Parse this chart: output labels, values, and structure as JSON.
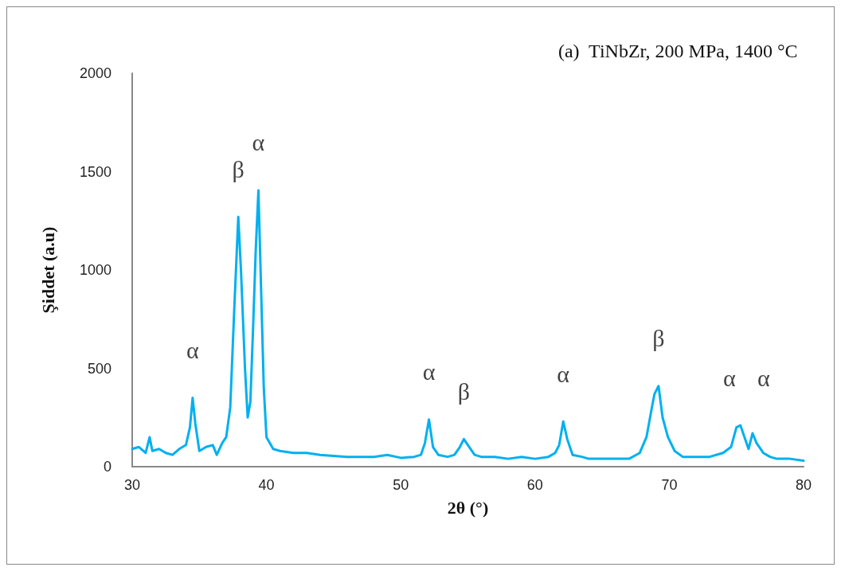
{
  "chart_data": {
    "type": "line",
    "title": "(a)  TiNbZr, 200 MPa, 1400 °C",
    "xlabel": "2θ (°)",
    "ylabel": "Şiddet (a.u)",
    "x": [
      30,
      30.5,
      31,
      31.3,
      31.5,
      32,
      32.5,
      33,
      33.5,
      34,
      34.3,
      34.5,
      34.7,
      35,
      35.5,
      36,
      36.3,
      36.7,
      37,
      37.3,
      37.6,
      37.9,
      38.1,
      38.4,
      38.6,
      38.8,
      39,
      39.2,
      39.4,
      39.6,
      39.8,
      40,
      40.5,
      41,
      42,
      43,
      44,
      45,
      46,
      47,
      48,
      49,
      50,
      51,
      51.5,
      51.8,
      52.1,
      52.4,
      52.8,
      53.5,
      54,
      54.4,
      54.7,
      55,
      55.5,
      56,
      57,
      58,
      59,
      60,
      61,
      61.5,
      61.8,
      62.1,
      62.4,
      62.8,
      63.5,
      64,
      65,
      66,
      67,
      67.8,
      68.3,
      68.7,
      68.9,
      69.2,
      69.5,
      69.9,
      70.4,
      71,
      72,
      73,
      74,
      74.6,
      75,
      75.3,
      75.6,
      75.9,
      76.2,
      76.5,
      77,
      77.5,
      78,
      79,
      80
    ],
    "series": [
      {
        "color": "#00b0f0",
        "values": [
          90,
          100,
          70,
          150,
          80,
          90,
          70,
          60,
          90,
          110,
          200,
          350,
          220,
          80,
          100,
          110,
          60,
          120,
          150,
          300,
          800,
          1270,
          1000,
          500,
          250,
          330,
          700,
          1100,
          1405,
          900,
          400,
          150,
          90,
          80,
          70,
          70,
          60,
          55,
          50,
          50,
          50,
          60,
          45,
          50,
          60,
          120,
          240,
          100,
          60,
          50,
          60,
          100,
          140,
          110,
          60,
          50,
          50,
          40,
          50,
          40,
          50,
          70,
          110,
          230,
          140,
          60,
          50,
          40,
          40,
          40,
          40,
          70,
          150,
          300,
          370,
          410,
          250,
          150,
          80,
          50,
          50,
          50,
          70,
          100,
          200,
          210,
          150,
          90,
          170,
          120,
          70,
          50,
          40,
          40,
          30
        ]
      }
    ],
    "xlim": [
      30,
      80
    ],
    "xticks": [
      30,
      40,
      50,
      60,
      70,
      80
    ],
    "ylim": [
      0,
      2000
    ],
    "yticks": [
      0,
      500,
      1000,
      1500,
      2000
    ],
    "grid": false,
    "marker": "none",
    "line_style": "solid",
    "annotations": [
      {
        "text": "α",
        "x": 34.5,
        "y": 350
      },
      {
        "text": "β",
        "x": 37.9,
        "y": 1270
      },
      {
        "text": "α",
        "x": 39.4,
        "y": 1405
      },
      {
        "text": "α",
        "x": 52.1,
        "y": 240
      },
      {
        "text": "β",
        "x": 54.7,
        "y": 140
      },
      {
        "text": "α",
        "x": 62.1,
        "y": 230
      },
      {
        "text": "β",
        "x": 69.2,
        "y": 410
      },
      {
        "text": "α",
        "x": 75.3,
        "y": 210
      },
      {
        "text": "α",
        "x": 76.2,
        "y": 170
      }
    ]
  }
}
